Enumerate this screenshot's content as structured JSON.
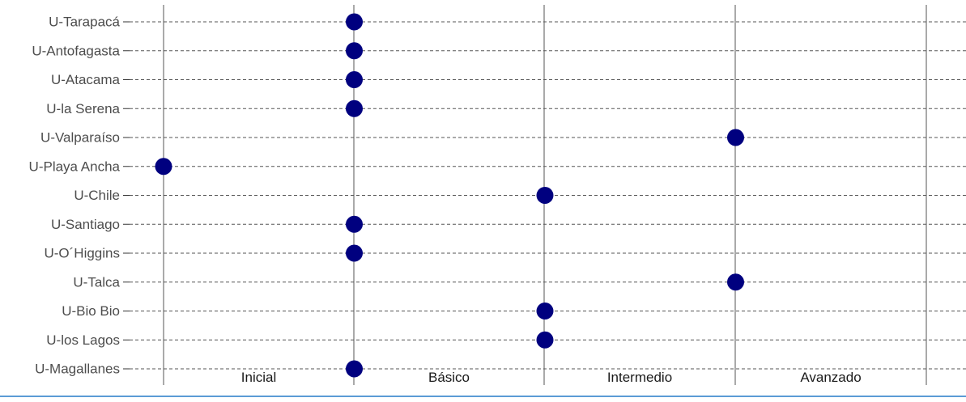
{
  "chart_data": {
    "type": "scatter",
    "title": "",
    "xlabel": "",
    "ylabel": "",
    "levels": [
      "Inicial",
      "Básico",
      "Intermedio",
      "Avanzado"
    ],
    "categories": [
      "U-Tarapacá",
      "U-Antofagasta",
      "U-Atacama",
      "U-la Serena",
      "U-Valparaíso",
      "U-Playa Ancha",
      "U-Chile",
      "U-Santiago",
      "U-O´Higgins",
      "U-Talca",
      "U-Bio Bio",
      "U-los Lagos",
      "U-Magallanes"
    ],
    "values": [
      1,
      1,
      1,
      1,
      3,
      0,
      2,
      1,
      1,
      3,
      2,
      2,
      1
    ],
    "xlim": [
      0,
      4
    ],
    "grid": true,
    "legend": "none",
    "colors": {
      "point": "#00007f",
      "gridline": "#555555",
      "vline": "#555555",
      "label": "#4d4d4d",
      "level_label": "#1a1a1a",
      "bottom_rule": "#5b9bd5"
    }
  }
}
